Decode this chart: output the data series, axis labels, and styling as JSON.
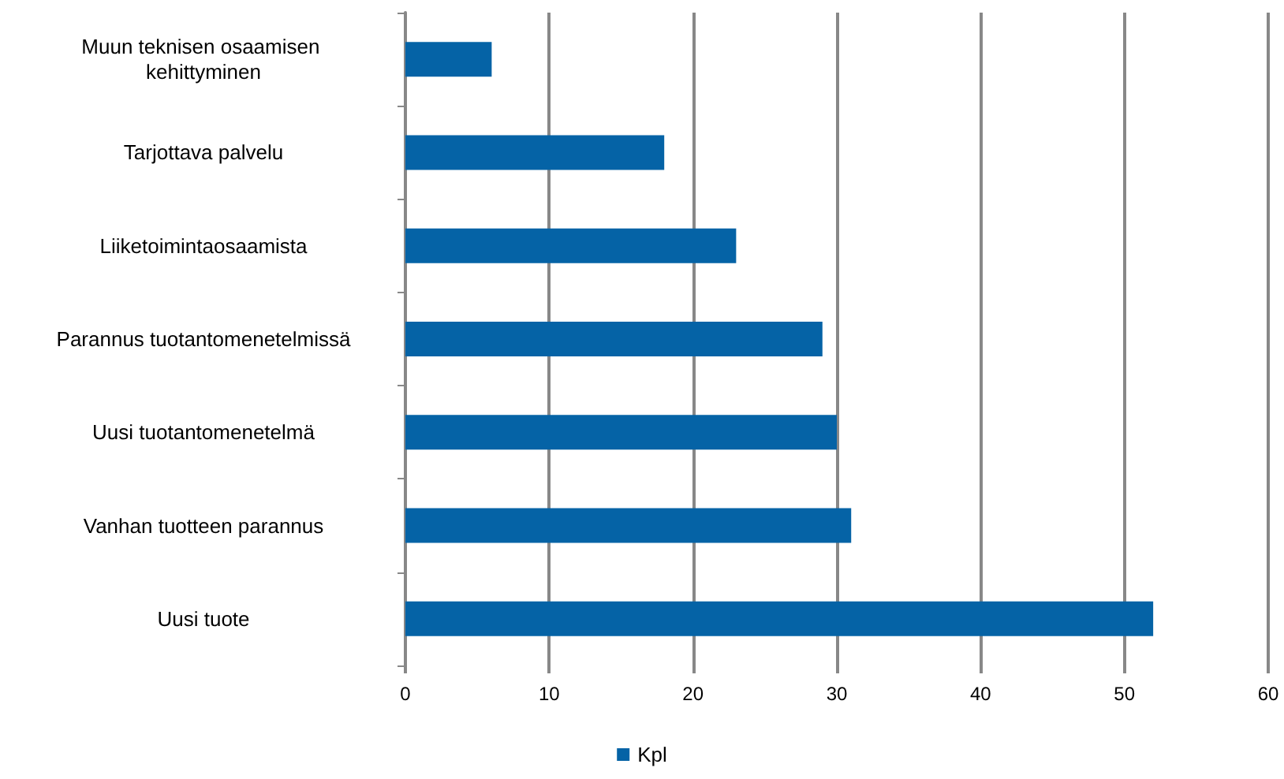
{
  "chart_data": {
    "type": "bar",
    "orientation": "horizontal",
    "categories": [
      "Muun teknisen osaamisen kehittyminen",
      "Tarjottava palvelu",
      "Liiketoimintaosaamista",
      "Parannus tuotantomenetelmissä",
      "Uusi tuotantomenetelmä",
      "Vanhan tuotteen parannus",
      "Uusi tuote"
    ],
    "series": [
      {
        "name": "Kpl",
        "color": "#0563a6",
        "values": [
          6,
          18,
          23,
          29,
          30,
          31,
          52
        ]
      }
    ],
    "xlim": [
      0,
      60
    ],
    "xticks": [
      0,
      10,
      20,
      30,
      40,
      50,
      60
    ],
    "grid": "x",
    "legend": "bottom"
  }
}
